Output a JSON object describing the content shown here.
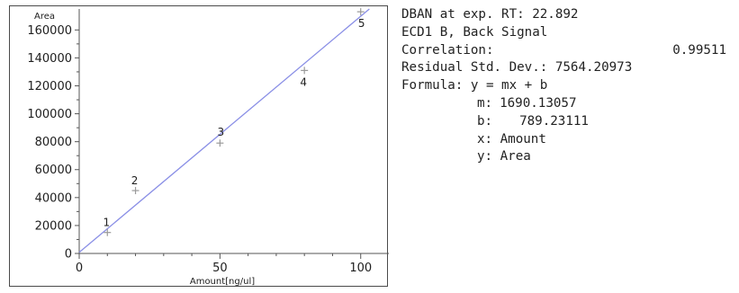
{
  "chart_data": {
    "type": "scatter",
    "title": "",
    "xlabel": "Amount[ng/ul]",
    "ylabel": "Area",
    "xlim": [
      0,
      110
    ],
    "ylim": [
      0,
      175000
    ],
    "x_ticks": [
      0,
      50,
      100
    ],
    "x_tick_labels": [
      "0",
      "50",
      "100"
    ],
    "y_ticks": [
      0,
      20000,
      40000,
      60000,
      80000,
      100000,
      120000,
      140000,
      160000
    ],
    "y_tick_labels": [
      "0",
      "20000",
      "40000",
      "60000",
      "80000",
      "100000",
      "120000",
      "140000",
      "160000"
    ],
    "grid": false,
    "series": [
      {
        "points": [
          {
            "label": "1",
            "x": 10,
            "y": 15000
          },
          {
            "label": "2",
            "x": 20,
            "y": 45000
          },
          {
            "label": "3",
            "x": 50,
            "y": 79000
          },
          {
            "label": "4",
            "x": 80,
            "y": 131000
          },
          {
            "label": "5",
            "x": 100,
            "y": 173000
          }
        ]
      }
    ],
    "fit_line": {
      "slope": 1690.13057,
      "intercept": 789.23111
    },
    "colors": {
      "fit_line": "#8a8fe6",
      "markers": "#9a9a9a",
      "axis": "#555555"
    }
  },
  "info": {
    "compound": "DBAN at exp. RT: 22.892",
    "signal": "ECD1 B, Back Signal",
    "correlation_label": "Correlation:",
    "correlation_value": "0.99511",
    "residual_label": "Residual Std. Dev.:",
    "residual_value": "7564.20973",
    "formula_label": "Formula:",
    "formula": "y = mx + b",
    "m_label": "m:",
    "m_value": "1690.13057",
    "b_label": "b:",
    "b_value": "789.23111",
    "x_def": "x: Amount",
    "y_def": "y: Area"
  }
}
